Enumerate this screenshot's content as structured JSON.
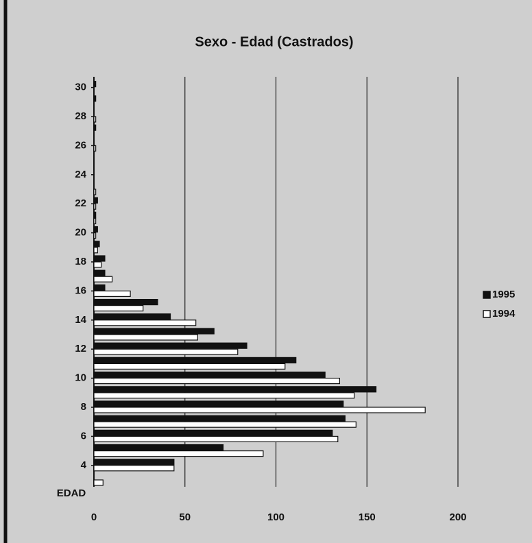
{
  "chart_data": {
    "type": "barh",
    "title": "Sexo - Edad  (Castrados)",
    "ylabel": "EDAD",
    "categories": [
      null,
      "4",
      null,
      "6",
      null,
      "8",
      null,
      "10",
      null,
      "12",
      null,
      "14",
      null,
      "16",
      null,
      "18",
      null,
      "20",
      null,
      "22",
      null,
      "24",
      null,
      "26",
      null,
      "28",
      null,
      "30"
    ],
    "series": [
      {
        "name": "1995",
        "color": "#111111",
        "values": [
          0,
          44,
          71,
          131,
          138,
          137,
          155,
          127,
          111,
          84,
          66,
          42,
          35,
          6,
          6,
          6,
          3,
          2,
          1,
          2,
          0,
          0,
          0,
          0,
          1,
          0,
          1,
          1
        ]
      },
      {
        "name": "1994",
        "color": "#ffffff",
        "values": [
          5,
          44,
          93,
          134,
          144,
          182,
          143,
          135,
          105,
          79,
          57,
          56,
          27,
          20,
          10,
          4,
          2,
          1,
          1,
          1,
          1,
          0,
          0,
          1,
          0,
          1,
          0,
          0
        ]
      }
    ],
    "xlim": [
      0,
      200
    ],
    "xticks": [
      0,
      50,
      100,
      150,
      200
    ],
    "grid": true,
    "legend": "right"
  }
}
